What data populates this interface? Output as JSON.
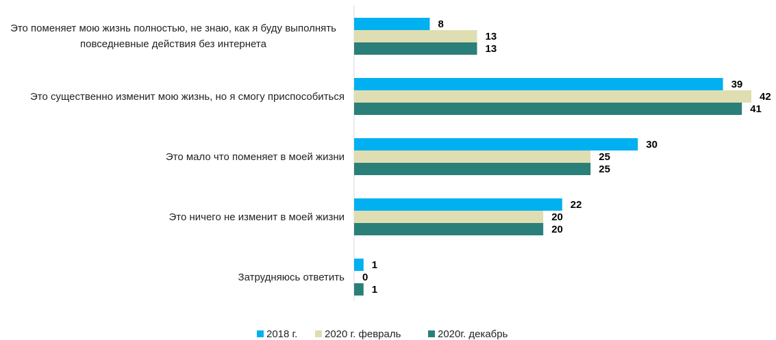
{
  "chart_data": {
    "type": "bar",
    "orientation": "horizontal",
    "categories": [
      "Это поменяет мою жизнь полностью, не знаю, как я буду выполнять повседневные действия без интернета",
      "Это существенно изменит мою жизнь, но я смогу приспособиться",
      "Это мало что поменяет в моей жизни",
      "Это ничего не изменит в моей жизни",
      "Затрудняюсь ответить"
    ],
    "series": [
      {
        "name": "2018 г.",
        "color": "#00b0f0",
        "values": [
          8,
          39,
          30,
          22,
          1
        ]
      },
      {
        "name": "2020 г. февраль",
        "color": "#dfdeb2",
        "values": [
          13,
          42,
          25,
          20,
          0
        ]
      },
      {
        "name": "2020г. декабрь",
        "color": "#2b7f79",
        "values": [
          13,
          41,
          25,
          20,
          1
        ]
      }
    ],
    "legend": "bottom"
  }
}
